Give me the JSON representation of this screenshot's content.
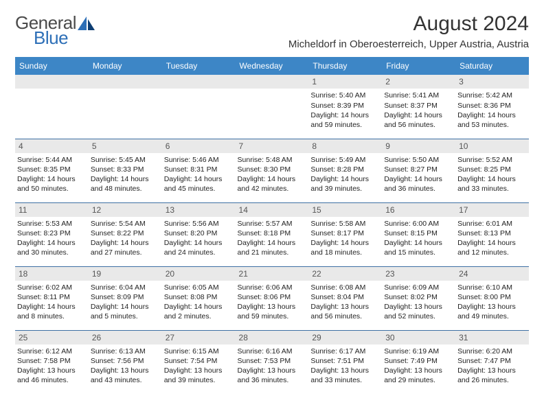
{
  "logo": {
    "general": "General",
    "blue": "Blue"
  },
  "title": "August 2024",
  "location": "Micheldorf in Oberoesterreich, Upper Austria, Austria",
  "headers": [
    "Sunday",
    "Monday",
    "Tuesday",
    "Wednesday",
    "Thursday",
    "Friday",
    "Saturday"
  ],
  "colors": {
    "header_bg": "#3d86c6",
    "header_fg": "#ffffff",
    "daynum_bg": "#e9e9e9",
    "row_border": "#3d6fa3",
    "logo_blue": "#2d6fb7",
    "logo_dark": "#0e3e73"
  },
  "first_weekday_index": 4,
  "days_count": 31,
  "days": {
    "1": {
      "sunrise": "5:40 AM",
      "sunset": "8:39 PM",
      "daylight": "14 hours and 59 minutes."
    },
    "2": {
      "sunrise": "5:41 AM",
      "sunset": "8:37 PM",
      "daylight": "14 hours and 56 minutes."
    },
    "3": {
      "sunrise": "5:42 AM",
      "sunset": "8:36 PM",
      "daylight": "14 hours and 53 minutes."
    },
    "4": {
      "sunrise": "5:44 AM",
      "sunset": "8:35 PM",
      "daylight": "14 hours and 50 minutes."
    },
    "5": {
      "sunrise": "5:45 AM",
      "sunset": "8:33 PM",
      "daylight": "14 hours and 48 minutes."
    },
    "6": {
      "sunrise": "5:46 AM",
      "sunset": "8:31 PM",
      "daylight": "14 hours and 45 minutes."
    },
    "7": {
      "sunrise": "5:48 AM",
      "sunset": "8:30 PM",
      "daylight": "14 hours and 42 minutes."
    },
    "8": {
      "sunrise": "5:49 AM",
      "sunset": "8:28 PM",
      "daylight": "14 hours and 39 minutes."
    },
    "9": {
      "sunrise": "5:50 AM",
      "sunset": "8:27 PM",
      "daylight": "14 hours and 36 minutes."
    },
    "10": {
      "sunrise": "5:52 AM",
      "sunset": "8:25 PM",
      "daylight": "14 hours and 33 minutes."
    },
    "11": {
      "sunrise": "5:53 AM",
      "sunset": "8:23 PM",
      "daylight": "14 hours and 30 minutes."
    },
    "12": {
      "sunrise": "5:54 AM",
      "sunset": "8:22 PM",
      "daylight": "14 hours and 27 minutes."
    },
    "13": {
      "sunrise": "5:56 AM",
      "sunset": "8:20 PM",
      "daylight": "14 hours and 24 minutes."
    },
    "14": {
      "sunrise": "5:57 AM",
      "sunset": "8:18 PM",
      "daylight": "14 hours and 21 minutes."
    },
    "15": {
      "sunrise": "5:58 AM",
      "sunset": "8:17 PM",
      "daylight": "14 hours and 18 minutes."
    },
    "16": {
      "sunrise": "6:00 AM",
      "sunset": "8:15 PM",
      "daylight": "14 hours and 15 minutes."
    },
    "17": {
      "sunrise": "6:01 AM",
      "sunset": "8:13 PM",
      "daylight": "14 hours and 12 minutes."
    },
    "18": {
      "sunrise": "6:02 AM",
      "sunset": "8:11 PM",
      "daylight": "14 hours and 8 minutes."
    },
    "19": {
      "sunrise": "6:04 AM",
      "sunset": "8:09 PM",
      "daylight": "14 hours and 5 minutes."
    },
    "20": {
      "sunrise": "6:05 AM",
      "sunset": "8:08 PM",
      "daylight": "14 hours and 2 minutes."
    },
    "21": {
      "sunrise": "6:06 AM",
      "sunset": "8:06 PM",
      "daylight": "13 hours and 59 minutes."
    },
    "22": {
      "sunrise": "6:08 AM",
      "sunset": "8:04 PM",
      "daylight": "13 hours and 56 minutes."
    },
    "23": {
      "sunrise": "6:09 AM",
      "sunset": "8:02 PM",
      "daylight": "13 hours and 52 minutes."
    },
    "24": {
      "sunrise": "6:10 AM",
      "sunset": "8:00 PM",
      "daylight": "13 hours and 49 minutes."
    },
    "25": {
      "sunrise": "6:12 AM",
      "sunset": "7:58 PM",
      "daylight": "13 hours and 46 minutes."
    },
    "26": {
      "sunrise": "6:13 AM",
      "sunset": "7:56 PM",
      "daylight": "13 hours and 43 minutes."
    },
    "27": {
      "sunrise": "6:15 AM",
      "sunset": "7:54 PM",
      "daylight": "13 hours and 39 minutes."
    },
    "28": {
      "sunrise": "6:16 AM",
      "sunset": "7:53 PM",
      "daylight": "13 hours and 36 minutes."
    },
    "29": {
      "sunrise": "6:17 AM",
      "sunset": "7:51 PM",
      "daylight": "13 hours and 33 minutes."
    },
    "30": {
      "sunrise": "6:19 AM",
      "sunset": "7:49 PM",
      "daylight": "13 hours and 29 minutes."
    },
    "31": {
      "sunrise": "6:20 AM",
      "sunset": "7:47 PM",
      "daylight": "13 hours and 26 minutes."
    }
  },
  "labels": {
    "sunrise": "Sunrise: ",
    "sunset": "Sunset: ",
    "daylight": "Daylight: "
  }
}
